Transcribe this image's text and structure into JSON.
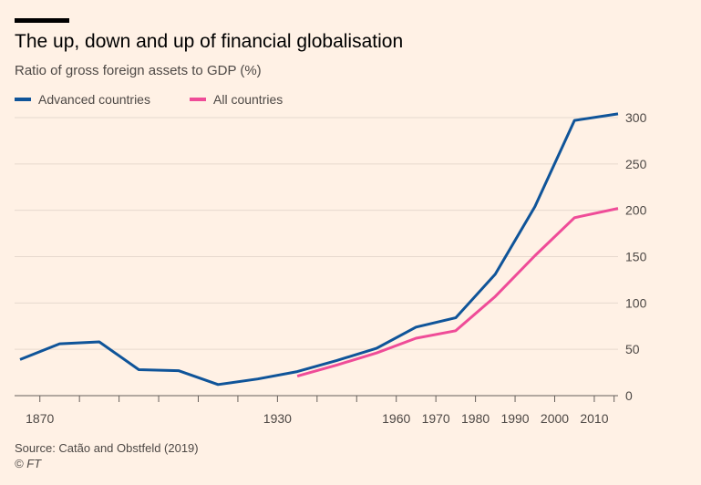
{
  "title": "The up, down and up of financial globalisation",
  "subtitle": "Ratio of gross foreign assets to GDP (%)",
  "source": "Source: Catão and Obstfeld (2019)",
  "credit": "© FT",
  "colors": {
    "background": "#fff1e5",
    "advanced": "#0f5499",
    "all": "#ef4c98",
    "grid": "#e6d9ce",
    "axis": "#66605c"
  },
  "chart_data": {
    "type": "line",
    "xlim": [
      1865,
      2016
    ],
    "ylim": [
      0,
      300
    ],
    "yticks": [
      0,
      50,
      100,
      150,
      200,
      250,
      300
    ],
    "xticks": [
      1870,
      1930,
      1960,
      1970,
      1980,
      1990,
      2000,
      2010
    ],
    "xtick_marks": [
      1870,
      1880,
      1890,
      1900,
      1910,
      1920,
      1930,
      1940,
      1950,
      1960,
      1970,
      1980,
      1990,
      2000,
      2010,
      2015
    ],
    "grid": true,
    "legend_position": "top-left",
    "series": [
      {
        "name": "Advanced countries",
        "color": "#0f5499",
        "points": [
          [
            1865,
            39
          ],
          [
            1875,
            56
          ],
          [
            1885,
            58
          ],
          [
            1895,
            28
          ],
          [
            1905,
            27
          ],
          [
            1915,
            12
          ],
          [
            1925,
            18
          ],
          [
            1935,
            26
          ],
          [
            1945,
            38
          ],
          [
            1955,
            51
          ],
          [
            1965,
            74
          ],
          [
            1975,
            84
          ],
          [
            1985,
            131
          ],
          [
            1995,
            204
          ],
          [
            2005,
            297
          ],
          [
            2016,
            304
          ]
        ]
      },
      {
        "name": "All countries",
        "color": "#ef4c98",
        "points": [
          [
            1935,
            21
          ],
          [
            1945,
            33
          ],
          [
            1955,
            46
          ],
          [
            1965,
            62
          ],
          [
            1975,
            70
          ],
          [
            1985,
            107
          ],
          [
            1995,
            151
          ],
          [
            2005,
            192
          ],
          [
            2016,
            202
          ]
        ]
      }
    ]
  }
}
